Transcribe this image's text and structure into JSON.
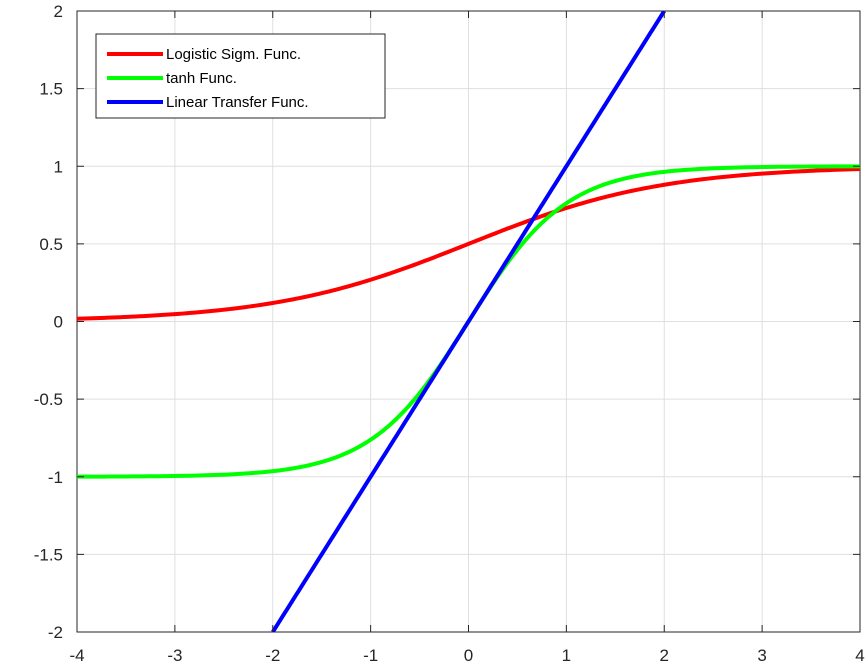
{
  "chart_data": {
    "type": "line",
    "title": "",
    "xlabel": "",
    "ylabel": "",
    "xlim": [
      -4,
      4
    ],
    "ylim": [
      -2,
      2
    ],
    "grid": true,
    "legend_position": "top-left",
    "xticks": [
      "-4",
      "-3",
      "-2",
      "-1",
      "0",
      "1",
      "2",
      "3",
      "4"
    ],
    "yticks": [
      "2",
      "1.5",
      "1",
      "0.5",
      "0",
      "-0.5",
      "-1",
      "-1.5",
      "-2"
    ],
    "series": [
      {
        "name": "Logistic Sigm. Func.",
        "color": "#ff0000",
        "function": "logistic",
        "x": [
          -4,
          -3.5,
          -3,
          -2.5,
          -2,
          -1.5,
          -1,
          -0.5,
          0,
          0.5,
          1,
          1.5,
          2,
          2.5,
          3,
          3.5,
          4
        ],
        "y": [
          0.018,
          0.029,
          0.047,
          0.076,
          0.119,
          0.182,
          0.269,
          0.378,
          0.5,
          0.622,
          0.731,
          0.818,
          0.881,
          0.924,
          0.953,
          0.971,
          0.982
        ]
      },
      {
        "name": "tanh Func.",
        "color": "#00ff00",
        "function": "tanh",
        "x": [
          -4,
          -3.5,
          -3,
          -2.5,
          -2,
          -1.5,
          -1,
          -0.5,
          0,
          0.5,
          1,
          1.5,
          2,
          2.5,
          3,
          3.5,
          4
        ],
        "y": [
          -0.999,
          -0.998,
          -0.995,
          -0.987,
          -0.964,
          -0.905,
          -0.762,
          -0.462,
          0,
          0.462,
          0.762,
          0.905,
          0.964,
          0.987,
          0.995,
          0.998,
          0.999
        ]
      },
      {
        "name": "Linear Transfer Func.",
        "color": "#0000ff",
        "function": "linear",
        "x": [
          -2,
          2
        ],
        "y": [
          -2,
          2
        ]
      }
    ]
  }
}
